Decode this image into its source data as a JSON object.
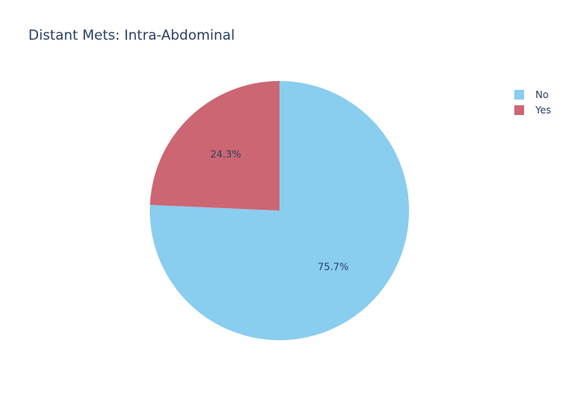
{
  "chart_data": {
    "type": "pie",
    "title": "Distant Mets: Intra-Abdominal",
    "slices": [
      {
        "label": "No",
        "value": 75.7,
        "text": "75.7%",
        "color": "#89cdef"
      },
      {
        "label": "Yes",
        "value": 24.3,
        "text": "24.3%",
        "color": "#cc6673"
      }
    ],
    "legend_position": "top-right",
    "direction": "clockwise",
    "start_angle": "top"
  }
}
